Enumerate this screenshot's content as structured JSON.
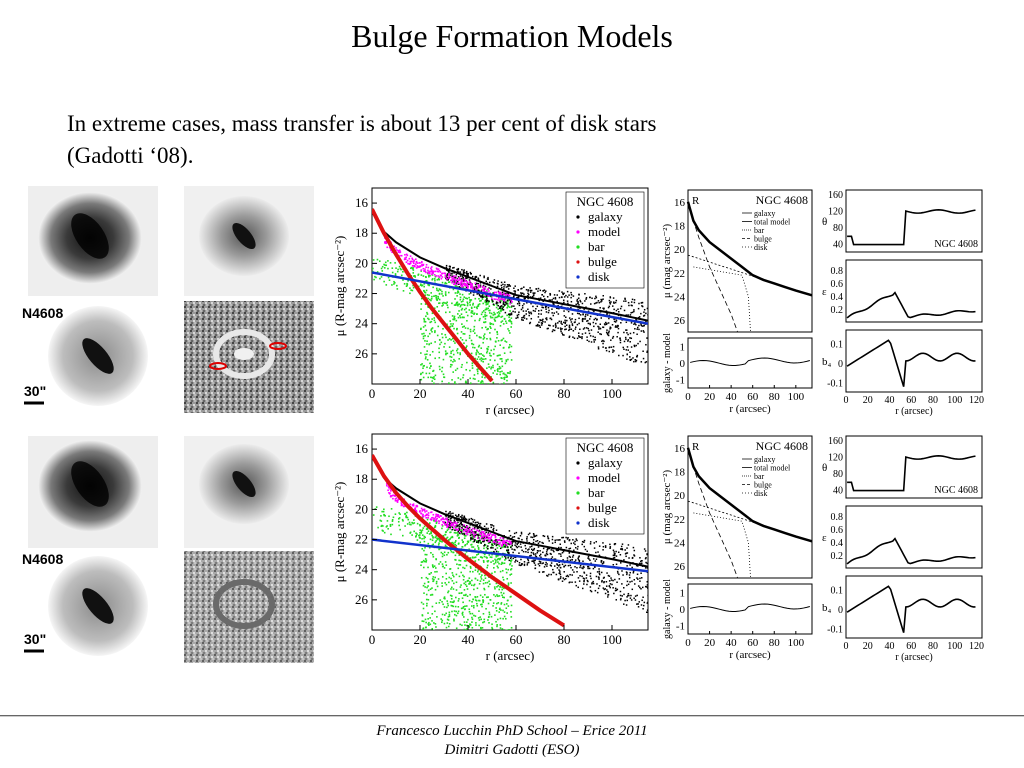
{
  "slide": {
    "title": "Bulge Formation Models",
    "body_line1": "In extreme cases, mass transfer is about 13 per cent of disk stars",
    "body_line2": "(Gadotti ‘08).",
    "footer_line1": "Francesco Lucchin PhD School – Erice 2011",
    "footer_line2": "Dimitri Gadotti (ESO)"
  },
  "image_panels": {
    "galaxy_label": "N4608",
    "scale_label": "30\""
  },
  "chart_data": [
    {
      "type": "scatter",
      "title": "NGC 4608",
      "xlabel": "r (arcsec)",
      "ylabel": "μ (R-mag arcsec⁻²)",
      "xlim": [
        0,
        115
      ],
      "ylim": [
        28,
        15
      ],
      "xticks": [
        0,
        20,
        40,
        60,
        80,
        100
      ],
      "yticks": [
        16,
        18,
        20,
        22,
        24,
        26
      ],
      "legend": [
        "galaxy",
        "model",
        "bar",
        "bulge",
        "disk"
      ],
      "legend_position": "top-right",
      "series": [
        {
          "name": "disk",
          "x": [
            0,
            115
          ],
          "y": [
            20.6,
            24.0
          ]
        },
        {
          "name": "bulge",
          "x": [
            0,
            5,
            10,
            15,
            20,
            25,
            30,
            35,
            40,
            45,
            50
          ],
          "y": [
            16.4,
            18.0,
            19.4,
            20.7,
            21.9,
            23.0,
            24.0,
            25.0,
            26.0,
            26.9,
            27.8
          ]
        },
        {
          "name": "model",
          "x": [
            0,
            3,
            6,
            10,
            15,
            20,
            30,
            40,
            50,
            58
          ],
          "y": [
            16.4,
            17.6,
            18.3,
            18.9,
            19.4,
            19.8,
            20.5,
            21.1,
            21.7,
            22.1
          ]
        },
        {
          "name": "galaxy",
          "x": [
            0,
            5,
            10,
            20,
            30,
            40,
            50,
            60,
            70,
            80,
            90,
            100,
            115
          ],
          "y": [
            16.4,
            17.9,
            18.6,
            19.6,
            20.3,
            20.9,
            21.5,
            22.1,
            22.4,
            22.7,
            23.0,
            23.3,
            23.8
          ]
        },
        {
          "name": "bar",
          "x": [
            0,
            10,
            20,
            30,
            40,
            50,
            58
          ],
          "y": [
            19.4,
            19.9,
            20.4,
            20.9,
            21.4,
            21.9,
            22.3
          ]
        }
      ]
    },
    {
      "type": "scatter",
      "title": "NGC 4608",
      "xlabel": "r (arcsec)",
      "ylabel": "μ (R-mag arcsec⁻²)",
      "xlim": [
        0,
        115
      ],
      "ylim": [
        28,
        15
      ],
      "xticks": [
        0,
        20,
        40,
        60,
        80,
        100
      ],
      "yticks": [
        16,
        18,
        20,
        22,
        24,
        26
      ],
      "legend": [
        "galaxy",
        "model",
        "bar",
        "bulge",
        "disk"
      ],
      "legend_position": "top-right",
      "series": [
        {
          "name": "disk",
          "x": [
            0,
            115
          ],
          "y": [
            22.0,
            24.1
          ]
        },
        {
          "name": "bulge",
          "x": [
            0,
            5,
            10,
            15,
            20,
            30,
            40,
            50,
            60,
            70,
            80
          ],
          "y": [
            16.4,
            17.8,
            18.9,
            19.8,
            20.6,
            22.0,
            23.3,
            24.5,
            25.6,
            26.7,
            27.7
          ]
        },
        {
          "name": "model",
          "x": [
            0,
            3,
            6,
            10,
            15,
            20,
            30,
            40,
            50,
            58
          ],
          "y": [
            16.4,
            17.5,
            18.3,
            18.9,
            19.4,
            19.8,
            20.5,
            21.1,
            21.6,
            22.0
          ]
        },
        {
          "name": "galaxy",
          "x": [
            0,
            5,
            10,
            20,
            30,
            40,
            50,
            60,
            70,
            80,
            90,
            100,
            115
          ],
          "y": [
            16.4,
            17.9,
            18.6,
            19.6,
            20.3,
            20.9,
            21.5,
            22.1,
            22.4,
            22.7,
            23.0,
            23.3,
            23.8
          ]
        },
        {
          "name": "bar",
          "x": [
            0,
            10,
            20,
            30,
            40,
            50,
            58
          ],
          "y": [
            19.5,
            19.9,
            20.4,
            20.9,
            21.4,
            21.9,
            22.3
          ]
        }
      ]
    },
    {
      "type": "line",
      "title": "NGC 4608",
      "band": "R",
      "xlabel": "r (arcsec)",
      "ylabel_top": "μ (mag arcsec⁻²)",
      "ylabel_bottom": "galaxy - model",
      "xticks": [
        0,
        20,
        40,
        60,
        80,
        100
      ],
      "yticks_top": [
        16,
        18,
        20,
        22,
        24,
        26
      ],
      "yticks_bottom": [
        1,
        0,
        -1
      ],
      "legend": [
        "galaxy",
        "total model",
        "bar",
        "bulge",
        "disk"
      ]
    },
    {
      "type": "line",
      "title": "NGC 4608",
      "band": "R",
      "xlabel": "r (arcsec)",
      "ylabel_top": "μ (mag arcsec⁻²)",
      "ylabel_bottom": "galaxy - model",
      "xticks": [
        0,
        20,
        40,
        60,
        80,
        100
      ],
      "yticks_top": [
        16,
        18,
        20,
        22,
        24,
        26
      ],
      "yticks_bottom": [
        1,
        0,
        -1
      ],
      "legend": [
        "galaxy",
        "total model",
        "bar",
        "bulge",
        "disk"
      ]
    },
    {
      "type": "line",
      "title": "NGC 4608",
      "xlabel": "r (arcsec)",
      "panels": [
        {
          "ylabel": "θ",
          "yticks": [
            160,
            120,
            80,
            40
          ]
        },
        {
          "ylabel": "ε",
          "yticks": [
            0.8,
            0.6,
            0.4,
            0.2
          ]
        },
        {
          "ylabel": "b₄",
          "yticks": [
            0.1,
            0,
            -0.1
          ]
        }
      ],
      "xticks": [
        0,
        20,
        40,
        60,
        80,
        100,
        120
      ]
    },
    {
      "type": "line",
      "title": "NGC 4608",
      "xlabel": "r (arcsec)",
      "panels": [
        {
          "ylabel": "θ",
          "yticks": [
            160,
            120,
            80,
            40
          ]
        },
        {
          "ylabel": "ε",
          "yticks": [
            0.8,
            0.6,
            0.4,
            0.2
          ]
        },
        {
          "ylabel": "b₄",
          "yticks": [
            0.1,
            0,
            -0.1
          ]
        }
      ],
      "xticks": [
        0,
        20,
        40,
        60,
        80,
        100,
        120
      ]
    }
  ]
}
